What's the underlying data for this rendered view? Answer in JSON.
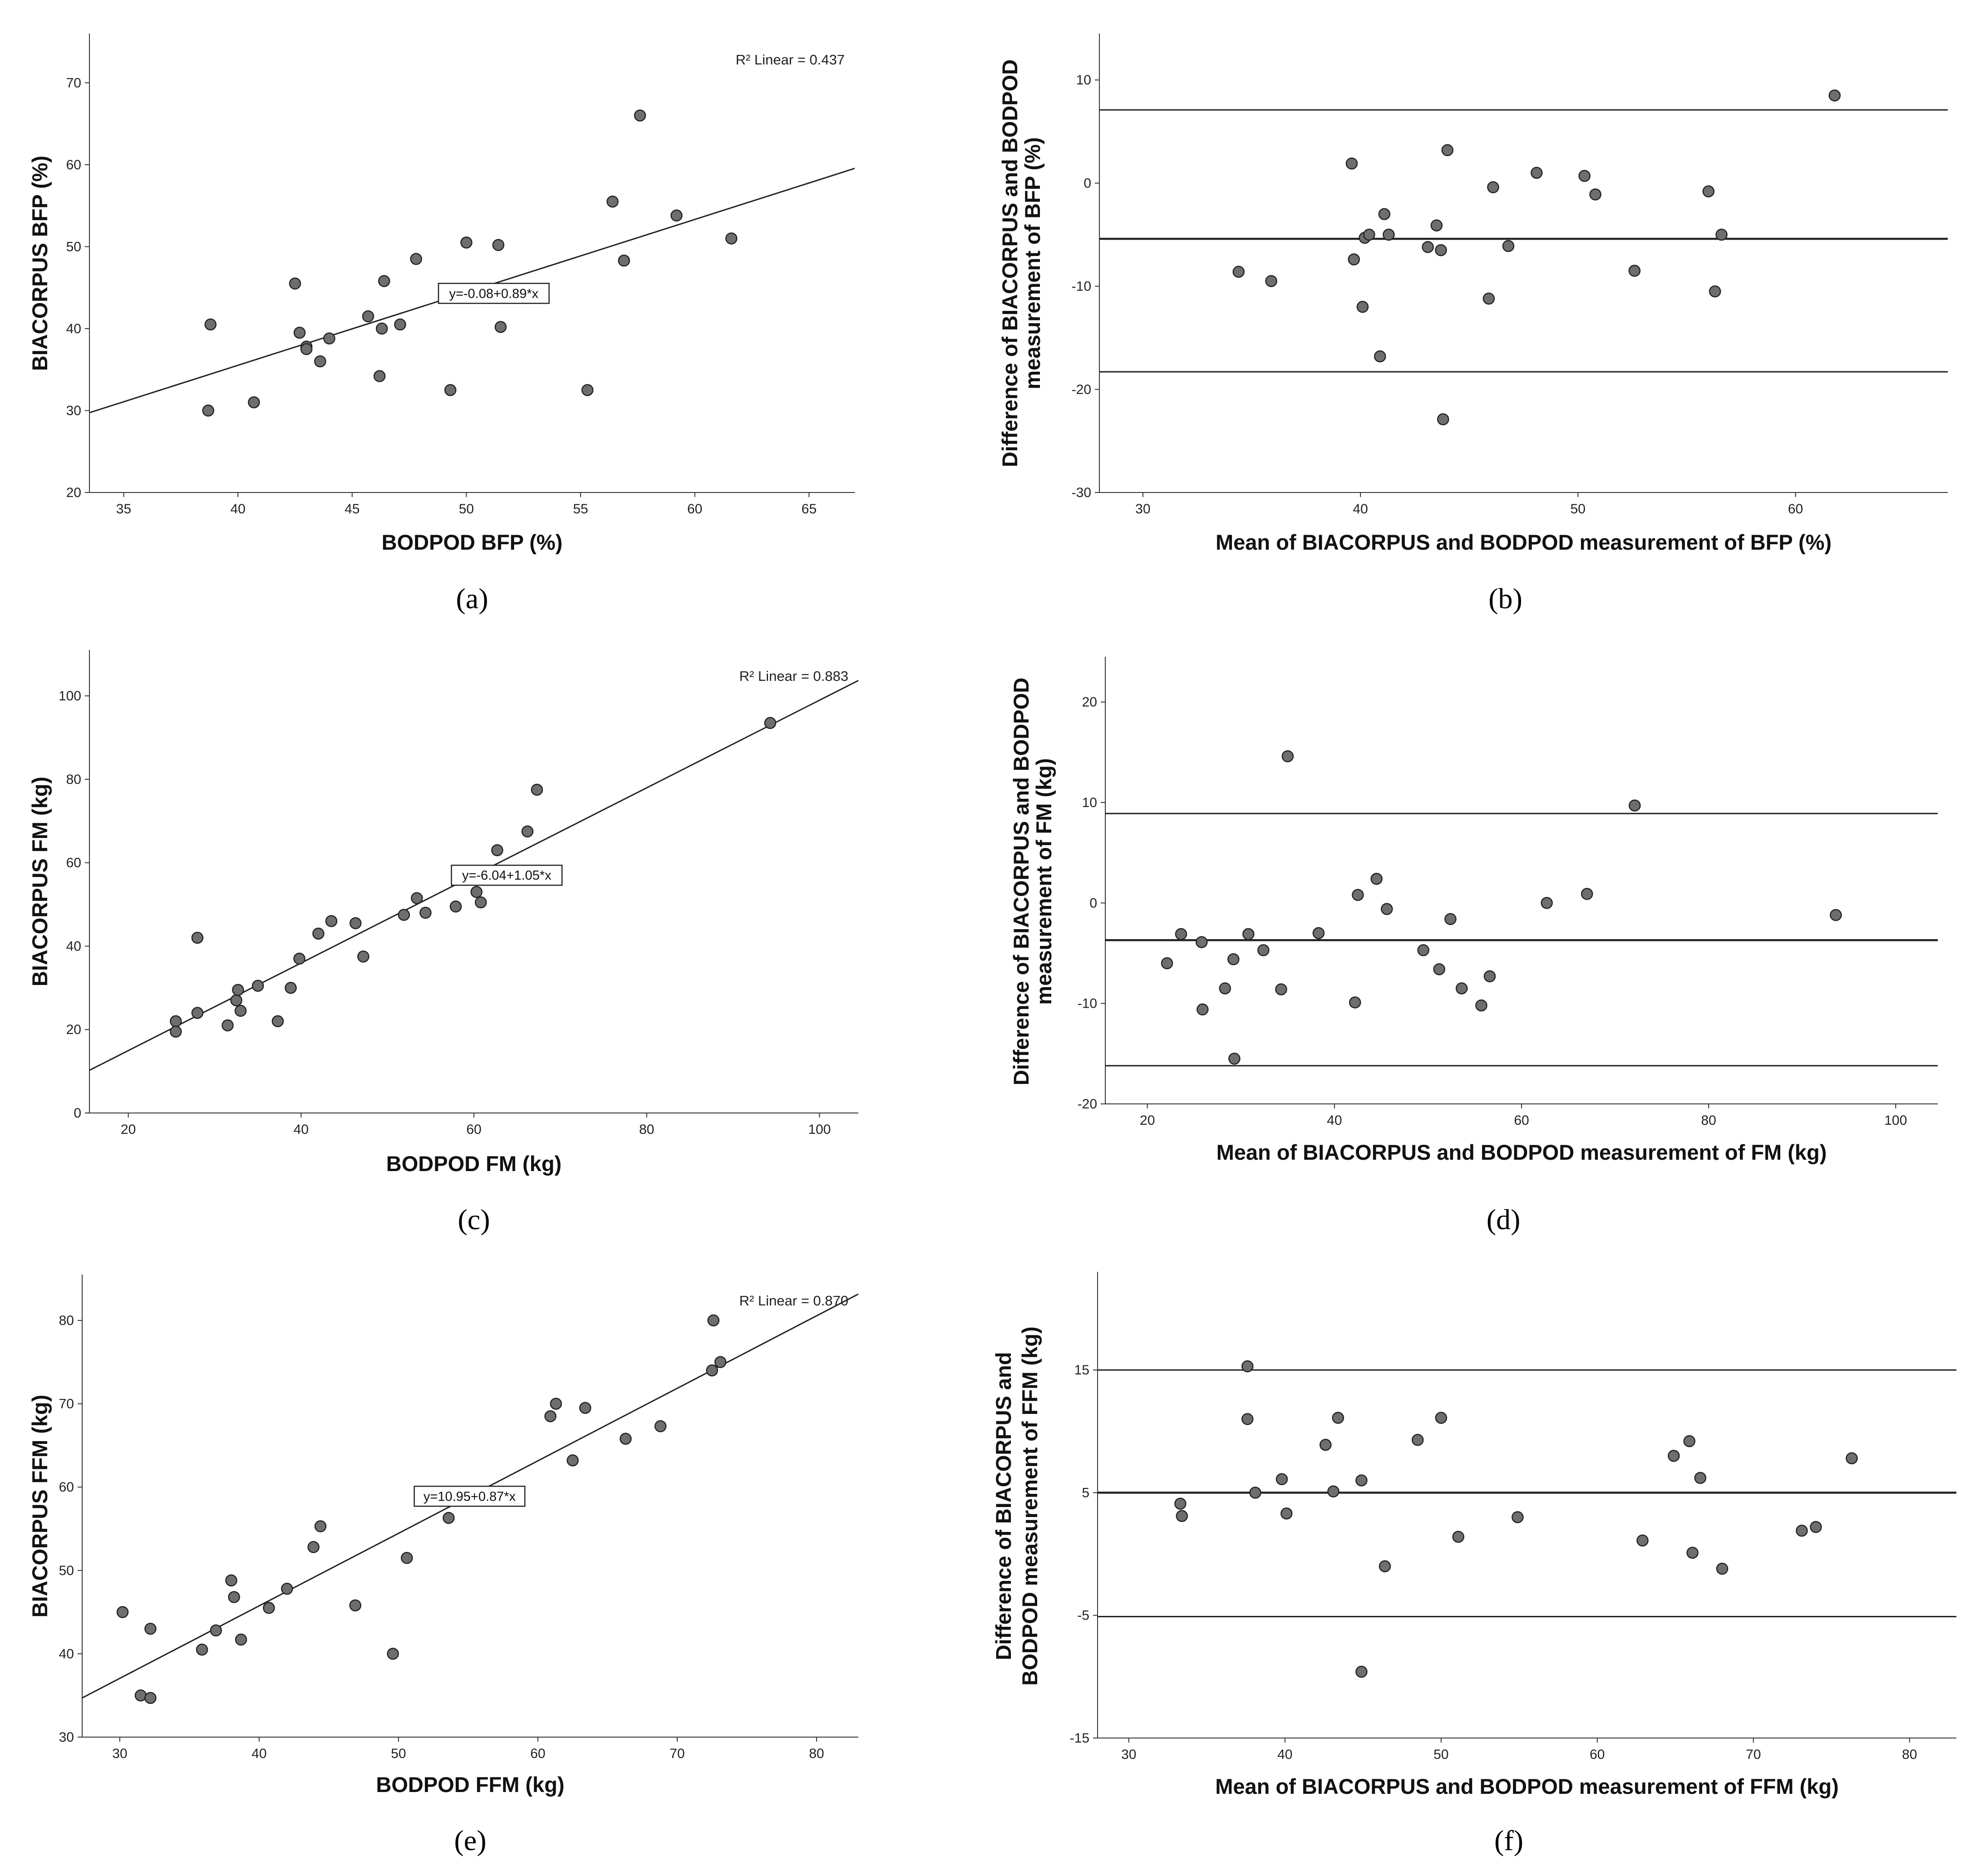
{
  "figure": {
    "colors": {
      "point": "#6e6e6e",
      "point_stroke": "#222222",
      "line": "#222222",
      "axis": "#333333"
    }
  },
  "chart_data": [
    {
      "panel": "(a)",
      "type": "scatter",
      "xlabel": "BODPOD BFP (%)",
      "ylabel": "BIACORPUS BFP (%)",
      "xlim": [
        33.5,
        67
      ],
      "ylim": [
        20,
        76
      ],
      "xticks": [
        "35",
        "40",
        "45",
        "50",
        "55",
        "60",
        "65"
      ],
      "yticks": [
        "20",
        "30",
        "40",
        "50",
        "60",
        "70"
      ],
      "r2_label": "R² Linear = 0.437",
      "equation_label": "y=-0.08+0.89*x",
      "equation_anchor": [
        51.2,
        44.3
      ],
      "fit": {
        "intercept": -0.08,
        "slope": 0.89
      },
      "points": [
        [
          38.8,
          40.5
        ],
        [
          38.7,
          30.0
        ],
        [
          40.7,
          31.0
        ],
        [
          42.5,
          45.5
        ],
        [
          42.7,
          39.5
        ],
        [
          43.0,
          37.8
        ],
        [
          43.0,
          37.5
        ],
        [
          43.6,
          36.0
        ],
        [
          44.0,
          38.8
        ],
        [
          45.7,
          41.5
        ],
        [
          46.2,
          34.2
        ],
        [
          46.3,
          40.0
        ],
        [
          46.4,
          45.8
        ],
        [
          47.1,
          40.5
        ],
        [
          47.8,
          48.5
        ],
        [
          49.3,
          32.5
        ],
        [
          50.0,
          50.5
        ],
        [
          51.4,
          50.2
        ],
        [
          51.5,
          40.2
        ],
        [
          55.3,
          32.5
        ],
        [
          56.4,
          55.5
        ],
        [
          56.9,
          48.3
        ],
        [
          57.6,
          66.0
        ],
        [
          59.2,
          53.8
        ],
        [
          61.6,
          51.0
        ]
      ]
    },
    {
      "panel": "(b)",
      "type": "scatter",
      "xlabel": "Mean of BIACORPUS and BODPOD measurement of BFP (%)",
      "ylabel": [
        "Difference of BIACORPUS and BODPOD",
        "measurement of BFP (%)"
      ],
      "xlim": [
        28,
        67
      ],
      "ylim": [
        -30,
        14.5
      ],
      "xticks": [
        "30",
        "40",
        "50",
        "60"
      ],
      "yticks": [
        "-30",
        "-20",
        "-10",
        "0",
        "10"
      ],
      "reference_lines": [
        7.1,
        -5.4,
        -18.3
      ],
      "points": [
        [
          34.4,
          -8.6
        ],
        [
          35.9,
          -9.5
        ],
        [
          39.6,
          1.9
        ],
        [
          39.7,
          -7.4
        ],
        [
          40.1,
          -12.0
        ],
        [
          40.2,
          -5.3
        ],
        [
          40.4,
          -5.0
        ],
        [
          40.9,
          -16.8
        ],
        [
          41.1,
          -3.0
        ],
        [
          41.3,
          -5.0
        ],
        [
          43.1,
          -6.2
        ],
        [
          43.5,
          -4.1
        ],
        [
          43.7,
          -6.5
        ],
        [
          43.8,
          -22.9
        ],
        [
          44.0,
          3.2
        ],
        [
          45.9,
          -11.2
        ],
        [
          46.1,
          -0.4
        ],
        [
          46.8,
          -6.1
        ],
        [
          48.1,
          1.0
        ],
        [
          50.3,
          0.7
        ],
        [
          50.8,
          -1.1
        ],
        [
          52.6,
          -8.5
        ],
        [
          56.0,
          -0.8
        ],
        [
          56.3,
          -10.5
        ],
        [
          56.6,
          -5.0
        ],
        [
          61.8,
          8.5
        ]
      ]
    },
    {
      "panel": "(c)",
      "type": "scatter",
      "xlabel": "BODPOD FM (kg)",
      "ylabel": "BIACORPUS FM (kg)",
      "xlim": [
        15.5,
        104.5
      ],
      "ylim": [
        0,
        111
      ],
      "xticks": [
        "20",
        "40",
        "60",
        "80",
        "100"
      ],
      "yticks": [
        "0",
        "20",
        "40",
        "60",
        "80",
        "100"
      ],
      "r2_label": "R² Linear = 0.883",
      "equation_label": "y=-6.04+1.05*x",
      "equation_anchor": [
        63.8,
        57.0
      ],
      "fit": {
        "intercept": -6.04,
        "slope": 1.05
      },
      "points": [
        [
          25.5,
          22.0
        ],
        [
          25.5,
          19.5
        ],
        [
          28.0,
          42.0
        ],
        [
          28.0,
          24.0
        ],
        [
          31.5,
          21.0
        ],
        [
          32.5,
          27.0
        ],
        [
          32.7,
          29.5
        ],
        [
          33.0,
          24.5
        ],
        [
          35.0,
          30.5
        ],
        [
          37.3,
          22.0
        ],
        [
          38.8,
          30.0
        ],
        [
          39.8,
          37.0
        ],
        [
          42.0,
          43.0
        ],
        [
          43.5,
          46.0
        ],
        [
          46.3,
          45.5
        ],
        [
          47.2,
          37.5
        ],
        [
          51.9,
          47.5
        ],
        [
          53.4,
          51.5
        ],
        [
          54.4,
          48.0
        ],
        [
          57.9,
          49.5
        ],
        [
          60.3,
          53.0
        ],
        [
          60.8,
          50.5
        ],
        [
          62.7,
          63.0
        ],
        [
          66.2,
          67.5
        ],
        [
          67.3,
          77.5
        ],
        [
          94.3,
          93.5
        ]
      ]
    },
    {
      "panel": "(d)",
      "type": "scatter",
      "xlabel": "Mean of BIACORPUS and BODPOD measurement of FM (kg)",
      "ylabel": [
        "Difference of BIACORPUS and BODPOD",
        "measurement of FM (kg)"
      ],
      "xlim": [
        15.5,
        104.5
      ],
      "ylim": [
        -20,
        24.5
      ],
      "xticks": [
        "20",
        "40",
        "60",
        "80",
        "100"
      ],
      "yticks": [
        "-20",
        "-10",
        "0",
        "10",
        "20"
      ],
      "reference_lines": [
        8.9,
        -3.7,
        -16.2
      ],
      "points": [
        [
          22.1,
          -6.0
        ],
        [
          23.6,
          -3.1
        ],
        [
          25.8,
          -3.9
        ],
        [
          25.9,
          -10.6
        ],
        [
          28.3,
          -8.5
        ],
        [
          29.2,
          -5.6
        ],
        [
          29.3,
          -15.5
        ],
        [
          30.8,
          -3.1
        ],
        [
          32.4,
          -4.7
        ],
        [
          34.3,
          -8.6
        ],
        [
          35.0,
          14.6
        ],
        [
          38.3,
          -3.0
        ],
        [
          42.2,
          -9.9
        ],
        [
          42.5,
          0.8
        ],
        [
          44.5,
          2.4
        ],
        [
          45.6,
          -0.6
        ],
        [
          49.5,
          -4.7
        ],
        [
          51.2,
          -6.6
        ],
        [
          52.4,
          -1.6
        ],
        [
          53.6,
          -8.5
        ],
        [
          55.7,
          -10.2
        ],
        [
          56.6,
          -7.3
        ],
        [
          62.7,
          0.0
        ],
        [
          67.0,
          0.9
        ],
        [
          72.1,
          9.7
        ],
        [
          93.6,
          -1.2
        ]
      ]
    },
    {
      "panel": "(e)",
      "type": "scatter",
      "xlabel": "BODPOD FFM (kg)",
      "ylabel": "BIACORPUS FFM (kg)",
      "xlim": [
        27.3,
        83
      ],
      "ylim": [
        30,
        85.5
      ],
      "xticks": [
        "30",
        "40",
        "50",
        "60",
        "70",
        "80"
      ],
      "yticks": [
        "30",
        "40",
        "50",
        "60",
        "70",
        "80"
      ],
      "r2_label": "R² Linear = 0.870",
      "equation_label": "y=10.95+0.87*x",
      "equation_anchor": [
        55.1,
        58.9
      ],
      "fit": {
        "intercept": 10.95,
        "slope": 0.87
      },
      "points": [
        [
          30.2,
          45.0
        ],
        [
          31.5,
          35.0
        ],
        [
          32.2,
          43.0
        ],
        [
          32.2,
          34.7
        ],
        [
          35.9,
          40.5
        ],
        [
          36.9,
          42.8
        ],
        [
          38.0,
          48.8
        ],
        [
          38.2,
          46.8
        ],
        [
          38.7,
          41.7
        ],
        [
          40.7,
          45.5
        ],
        [
          42.0,
          47.8
        ],
        [
          43.9,
          52.8
        ],
        [
          44.4,
          55.3
        ],
        [
          46.9,
          45.8
        ],
        [
          49.6,
          40.0
        ],
        [
          50.6,
          51.5
        ],
        [
          53.6,
          56.3
        ],
        [
          60.9,
          68.5
        ],
        [
          61.3,
          70.0
        ],
        [
          62.5,
          63.2
        ],
        [
          63.4,
          69.5
        ],
        [
          66.3,
          65.8
        ],
        [
          68.8,
          67.3
        ],
        [
          72.5,
          74.0
        ],
        [
          72.6,
          80.0
        ],
        [
          73.1,
          75.0
        ]
      ]
    },
    {
      "panel": "(f)",
      "type": "scatter",
      "xlabel": "Mean of BIACORPUS and BODPOD measurement of FFM (kg)",
      "ylabel": [
        "Difference of BIACORPUS and",
        "BODPOD measurement of FFM (kg)"
      ],
      "xlim": [
        28,
        83
      ],
      "ylim": [
        -15,
        23
      ],
      "xticks": [
        "30",
        "40",
        "50",
        "60",
        "70",
        "80"
      ],
      "yticks": [
        "-15",
        "-5",
        "5",
        "15"
      ],
      "reference_lines": [
        15.0,
        5.0,
        -5.1
      ],
      "points": [
        [
          33.3,
          4.1
        ],
        [
          33.4,
          3.1
        ],
        [
          37.6,
          15.3
        ],
        [
          37.6,
          11.0
        ],
        [
          38.1,
          5.0
        ],
        [
          39.8,
          6.1
        ],
        [
          40.1,
          3.3
        ],
        [
          42.6,
          8.9
        ],
        [
          43.1,
          5.1
        ],
        [
          43.4,
          11.1
        ],
        [
          44.9,
          6.0
        ],
        [
          44.9,
          -9.6
        ],
        [
          46.4,
          -1.0
        ],
        [
          48.5,
          9.3
        ],
        [
          50.0,
          11.1
        ],
        [
          51.1,
          1.4
        ],
        [
          54.9,
          3.0
        ],
        [
          62.9,
          1.1
        ],
        [
          64.9,
          8.0
        ],
        [
          65.9,
          9.2
        ],
        [
          66.1,
          0.1
        ],
        [
          66.6,
          6.2
        ],
        [
          68.0,
          -1.2
        ],
        [
          73.1,
          1.9
        ],
        [
          74.0,
          2.2
        ],
        [
          76.3,
          7.8
        ]
      ]
    }
  ]
}
